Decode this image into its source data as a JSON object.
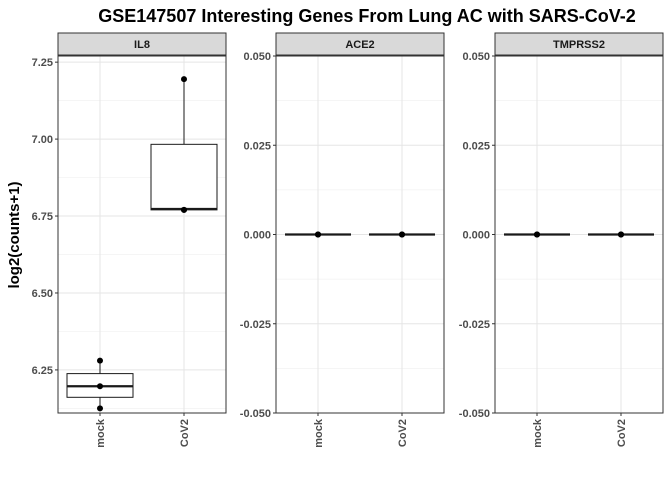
{
  "chart_data": {
    "type": "boxplot",
    "title": "GSE147507 Interesting Genes From Lung AC with SARS-CoV-2",
    "ylabel": "log2(counts+1)",
    "xlabel": "",
    "categories": [
      "mock",
      "CoV2"
    ],
    "grid": true,
    "facets": [
      {
        "name": "IL8",
        "ylim": [
          6.11,
          7.27
        ],
        "yticks": [
          6.25,
          6.5,
          6.75,
          7.0,
          7.25
        ],
        "ytick_labels": [
          "6.25",
          "6.50",
          "6.75",
          "7.00",
          "7.25"
        ],
        "groups": [
          {
            "category": "mock",
            "points": [
              6.28,
              6.197,
              6.125
            ],
            "q1": 6.161,
            "median": 6.197,
            "q3": 6.238,
            "whisker_low": 6.125,
            "whisker_high": 6.28
          },
          {
            "category": "CoV2",
            "points": [
              7.195,
              6.77,
              6.77
            ],
            "q1": 6.77,
            "median": 6.773,
            "q3": 6.983,
            "whisker_low": 6.77,
            "whisker_high": 7.195
          }
        ]
      },
      {
        "name": "ACE2",
        "ylim": [
          -0.05,
          0.05
        ],
        "yticks": [
          -0.05,
          -0.025,
          0.0,
          0.025,
          0.05
        ],
        "ytick_labels": [
          "-0.050",
          "-0.025",
          "0.000",
          "0.025",
          "0.050"
        ],
        "groups": [
          {
            "category": "mock",
            "points": [
              0,
              0,
              0
            ],
            "q1": 0,
            "median": 0,
            "q3": 0,
            "whisker_low": 0,
            "whisker_high": 0
          },
          {
            "category": "CoV2",
            "points": [
              0,
              0,
              0
            ],
            "q1": 0,
            "median": 0,
            "q3": 0,
            "whisker_low": 0,
            "whisker_high": 0
          }
        ]
      },
      {
        "name": "TMPRSS2",
        "ylim": [
          -0.05,
          0.05
        ],
        "yticks": [
          -0.05,
          -0.025,
          0.0,
          0.025,
          0.05
        ],
        "ytick_labels": [
          "-0.050",
          "-0.025",
          "0.000",
          "0.025",
          "0.050"
        ],
        "groups": [
          {
            "category": "mock",
            "points": [
              0,
              0,
              0
            ],
            "q1": 0,
            "median": 0,
            "q3": 0,
            "whisker_low": 0,
            "whisker_high": 0
          },
          {
            "category": "CoV2",
            "points": [
              0,
              0,
              0
            ],
            "q1": 0,
            "median": 0,
            "q3": 0,
            "whisker_low": 0,
            "whisker_high": 0
          }
        ]
      }
    ]
  }
}
